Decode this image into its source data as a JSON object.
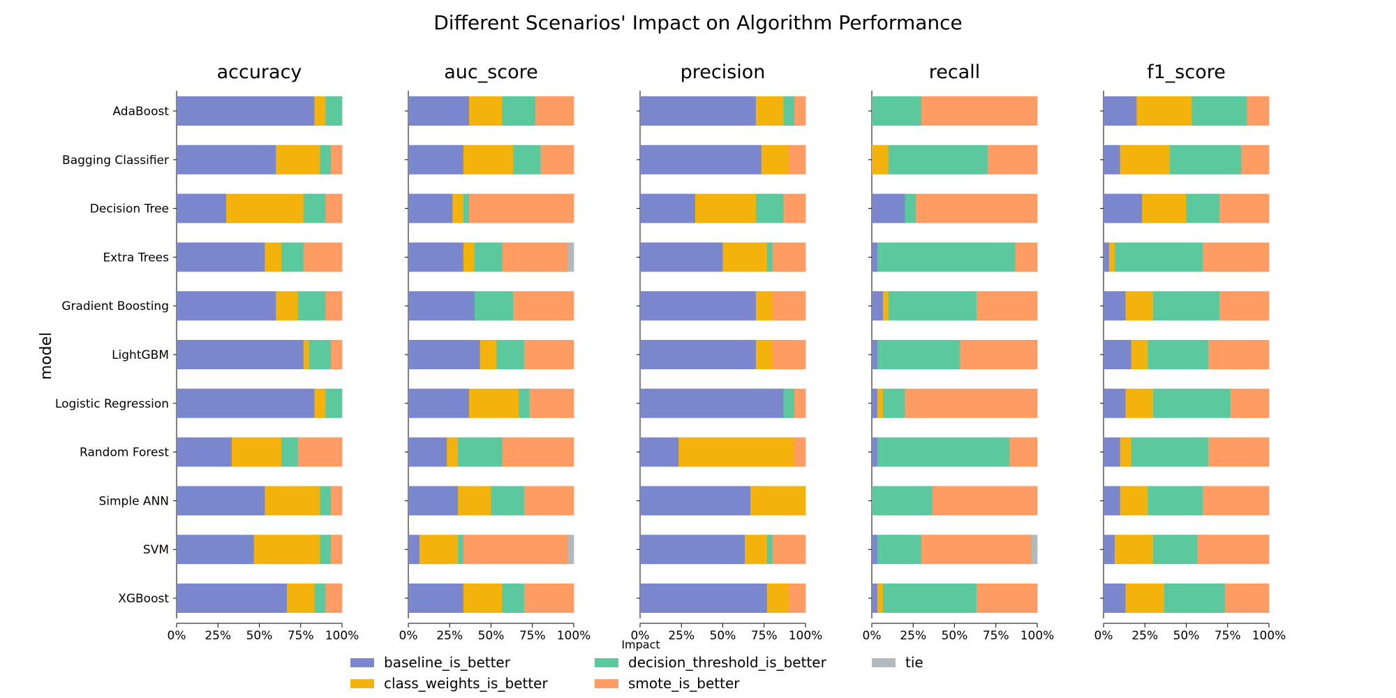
{
  "chart_data": {
    "type": "bar",
    "orientation": "horizontal",
    "stacked": true,
    "title": "Different Scenarios' Impact on Algorithm Performance",
    "ylabel": "model",
    "xlabel": "Impact",
    "xlim": [
      0,
      100
    ],
    "x_ticks": [
      "0%",
      "25%",
      "50%",
      "75%",
      "100%"
    ],
    "grid": false,
    "legend_position": "bottom-center",
    "categories": [
      "AdaBoost",
      "Bagging Classifier",
      "Decision Tree",
      "Extra Trees",
      "Gradient Boosting",
      "LightGBM",
      "Logistic Regression",
      "Random Forest",
      "Simple ANN",
      "SVM",
      "XGBoost"
    ],
    "series_meta": [
      {
        "key": "baseline_is_better",
        "name": "baseline_is_better",
        "color": "#7B87CC"
      },
      {
        "key": "class_weights_is_better",
        "name": "class_weights_is_better",
        "color": "#F4B30C"
      },
      {
        "key": "decision_threshold_is_better",
        "name": "decision_threshold_is_better",
        "color": "#5CC89E"
      },
      {
        "key": "smote_is_better",
        "name": "smote_is_better",
        "color": "#FF9C63"
      },
      {
        "key": "tie",
        "name": "tie",
        "color": "#B2BAC1"
      }
    ],
    "panels": [
      {
        "metric": "accuracy",
        "values": [
          [
            83.3,
            6.7,
            10.0,
            0,
            0
          ],
          [
            60.0,
            26.7,
            6.6,
            6.7,
            0
          ],
          [
            30.0,
            46.7,
            13.3,
            10.0,
            0
          ],
          [
            53.3,
            10.0,
            13.4,
            23.3,
            0
          ],
          [
            60.0,
            13.3,
            16.7,
            10.0,
            0
          ],
          [
            76.7,
            3.3,
            13.3,
            6.7,
            0
          ],
          [
            83.3,
            6.7,
            10.0,
            0,
            0
          ],
          [
            33.3,
            30.0,
            10.0,
            26.7,
            0
          ],
          [
            53.3,
            33.4,
            6.6,
            6.7,
            0
          ],
          [
            46.7,
            40.0,
            6.6,
            6.7,
            0
          ],
          [
            66.7,
            16.7,
            6.6,
            10.0,
            0
          ]
        ]
      },
      {
        "metric": "auc_score",
        "values": [
          [
            36.7,
            20.0,
            20.0,
            23.3,
            0
          ],
          [
            33.3,
            30.0,
            16.7,
            20.0,
            0
          ],
          [
            26.7,
            6.6,
            3.4,
            63.3,
            0
          ],
          [
            33.3,
            6.7,
            16.7,
            40.0,
            3.3
          ],
          [
            40.0,
            0,
            23.3,
            36.7,
            0
          ],
          [
            43.3,
            10.0,
            16.7,
            30.0,
            0
          ],
          [
            36.7,
            30.0,
            6.6,
            26.7,
            0
          ],
          [
            23.3,
            6.7,
            26.7,
            43.3,
            0
          ],
          [
            30.0,
            20.0,
            20.0,
            30.0,
            0
          ],
          [
            6.7,
            23.3,
            3.3,
            63.4,
            3.3
          ],
          [
            33.3,
            23.4,
            13.3,
            30.0,
            0
          ]
        ]
      },
      {
        "metric": "precision",
        "values": [
          [
            70.0,
            16.7,
            6.6,
            6.7,
            0
          ],
          [
            73.3,
            16.7,
            0,
            10.0,
            0
          ],
          [
            33.3,
            36.7,
            16.7,
            13.3,
            0
          ],
          [
            50.0,
            26.7,
            3.3,
            20.0,
            0
          ],
          [
            70.0,
            10.0,
            0,
            20.0,
            0
          ],
          [
            70.0,
            10.0,
            0,
            20.0,
            0
          ],
          [
            86.7,
            0,
            6.6,
            6.7,
            0
          ],
          [
            23.3,
            70.0,
            0,
            6.7,
            0
          ],
          [
            66.7,
            33.3,
            0,
            0,
            0
          ],
          [
            63.3,
            13.4,
            3.3,
            20.0,
            0
          ],
          [
            76.7,
            13.3,
            0,
            10.0,
            0
          ]
        ]
      },
      {
        "metric": "recall",
        "values": [
          [
            0,
            0,
            30.0,
            70.0,
            0
          ],
          [
            0,
            10.0,
            60.0,
            30.0,
            0
          ],
          [
            20.0,
            0,
            6.7,
            73.3,
            0
          ],
          [
            3.3,
            0,
            83.4,
            13.3,
            0
          ],
          [
            6.7,
            3.3,
            53.3,
            36.7,
            0
          ],
          [
            3.3,
            0,
            50.0,
            46.7,
            0
          ],
          [
            3.3,
            3.4,
            13.3,
            80.0,
            0
          ],
          [
            3.3,
            0,
            80.0,
            16.7,
            0
          ],
          [
            0,
            0,
            36.7,
            63.3,
            0
          ],
          [
            3.3,
            0,
            26.7,
            66.7,
            3.3
          ],
          [
            3.3,
            3.4,
            56.6,
            36.7,
            0
          ]
        ]
      },
      {
        "metric": "f1_score",
        "values": [
          [
            20.0,
            33.3,
            33.4,
            13.3,
            0
          ],
          [
            10.0,
            30.0,
            43.3,
            16.7,
            0
          ],
          [
            23.3,
            26.7,
            20.0,
            30.0,
            0
          ],
          [
            3.3,
            3.4,
            53.3,
            40.0,
            0
          ],
          [
            13.3,
            16.7,
            40.0,
            30.0,
            0
          ],
          [
            16.7,
            10.0,
            36.6,
            36.7,
            0
          ],
          [
            13.3,
            16.7,
            46.7,
            23.3,
            0
          ],
          [
            10.0,
            6.7,
            46.6,
            36.7,
            0
          ],
          [
            10.0,
            16.7,
            33.3,
            40.0,
            0
          ],
          [
            6.7,
            23.3,
            26.7,
            43.3,
            0
          ],
          [
            13.3,
            23.4,
            36.6,
            26.7,
            0
          ]
        ]
      }
    ]
  }
}
